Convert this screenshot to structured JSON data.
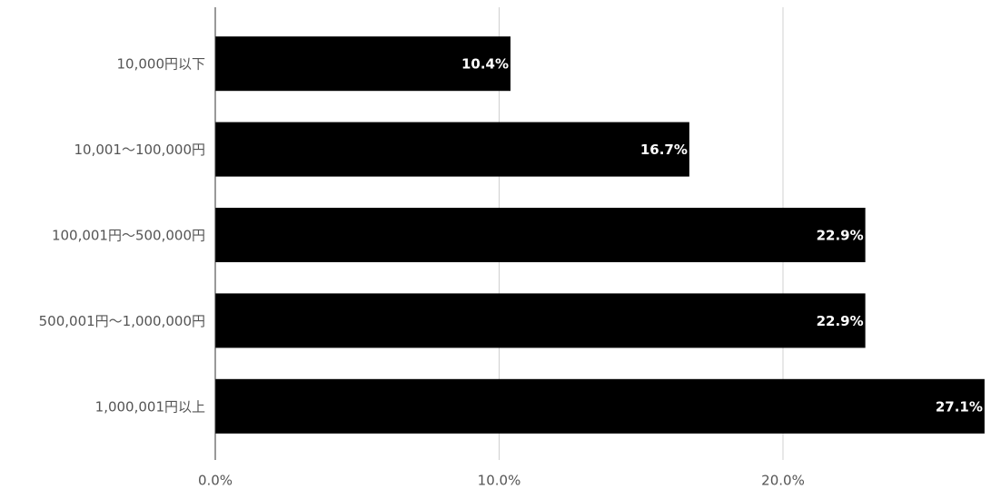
{
  "chart_data": {
    "type": "hbar",
    "categories": [
      "10,000円以下",
      "10,001〜100,000円",
      "100,001円〜500,000円",
      "500,001円〜1,000,000円",
      "1,000,001円以上"
    ],
    "values": [
      10.4,
      16.7,
      22.9,
      22.9,
      27.1
    ],
    "value_labels": [
      "10.4%",
      "16.7%",
      "22.9%",
      "22.9%",
      "27.1%"
    ],
    "color": "#000000",
    "xlim": [
      0,
      27.2
    ],
    "xticks": [
      {
        "value": 0,
        "label": "0.0%"
      },
      {
        "value": 10,
        "label": "10.0%"
      },
      {
        "value": 20,
        "label": "20.0%"
      }
    ],
    "grid": true
  }
}
